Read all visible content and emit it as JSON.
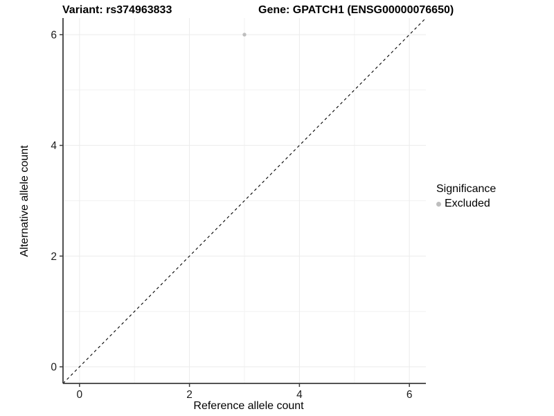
{
  "chart_data": {
    "type": "scatter",
    "title_left": "Variant: rs374963833",
    "title_right": "Gene: GPATCH1 (ENSG00000076650)",
    "xlabel": "Reference allele count",
    "ylabel": "Alternative allele count",
    "xlim": [
      -0.3,
      6.3
    ],
    "ylim": [
      -0.3,
      6.3
    ],
    "x_ticks": [
      0,
      2,
      4,
      6
    ],
    "y_ticks": [
      0,
      2,
      4,
      6
    ],
    "x_minor_ticks": [
      1,
      3,
      5
    ],
    "y_minor_ticks": [
      1,
      3,
      5
    ],
    "grid": "on",
    "points": [
      {
        "x": 3,
        "y": 6,
        "series": "Excluded",
        "color": "#bebebe"
      }
    ],
    "reference_line": {
      "slope": 1,
      "intercept": 0,
      "style": "dashed",
      "color": "#000000"
    },
    "legend": {
      "title": "Significance",
      "position": "right",
      "entries": [
        {
          "label": "Excluded",
          "color": "#bebebe"
        }
      ]
    }
  },
  "colors": {
    "background": "#ffffff",
    "grid_major": "#ebebeb",
    "grid_minor": "#f2f2f2",
    "axis_line": "#3c3c3c",
    "tick_label": "#1a1a1a",
    "point": "#bebebe"
  }
}
